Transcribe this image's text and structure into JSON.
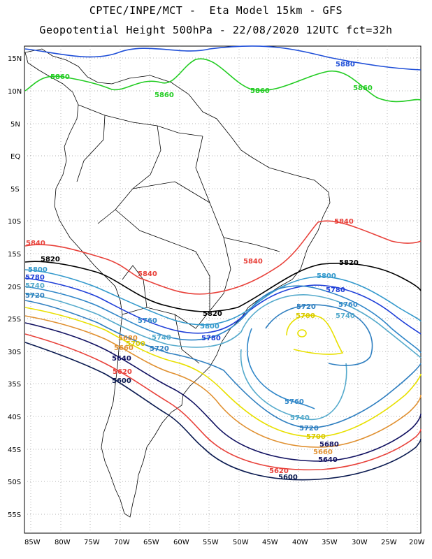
{
  "header": {
    "line1": "CPTEC/INPE/MCT -  Eta Model 15km - GFS",
    "line2": "Geopotential Height 500hPa - 22/08/2020 12UTC fct=32h"
  },
  "axes": {
    "lat_labels": [
      "15N",
      "10N",
      "5N",
      "EQ",
      "5S",
      "10S",
      "15S",
      "20S",
      "25S",
      "30S",
      "35S",
      "40S",
      "45S",
      "50S",
      "55S"
    ],
    "lon_labels": [
      "85W",
      "80W",
      "75W",
      "70W",
      "65W",
      "60W",
      "55W",
      "50W",
      "45W",
      "40W",
      "35W",
      "30W",
      "25W",
      "20W"
    ],
    "grid": "dotted"
  },
  "contours": {
    "c5880": {
      "label": "5880",
      "color": "#1f4fd8"
    },
    "c5860": {
      "label": "5860",
      "color": "#22cc22"
    },
    "c5840": {
      "label": "5840",
      "color": "#e8413a"
    },
    "c5820": {
      "label": "5820",
      "color": "#000000"
    },
    "c5800": {
      "label": "5800",
      "color": "#3399cc"
    },
    "c5780": {
      "label": "5780",
      "color": "#1f3fd8"
    },
    "c5760": {
      "label": "5760",
      "color": "#2f86c8"
    },
    "c5740": {
      "label": "5740",
      "color": "#55aacc"
    },
    "c5720": {
      "label": "5720",
      "color": "#2f7fc0"
    },
    "c5700": {
      "label": "5700",
      "color": "#e8e000"
    },
    "c5680": {
      "label": "5680",
      "color": "#e09030"
    },
    "c5660": {
      "label": "5660",
      "color": "#e09030"
    },
    "c5640": {
      "label": "5640",
      "color": "#101060"
    },
    "c5620": {
      "label": "5620",
      "color": "#e8413a"
    },
    "c5600": {
      "label": "5600",
      "color": "#0a1a50"
    }
  }
}
